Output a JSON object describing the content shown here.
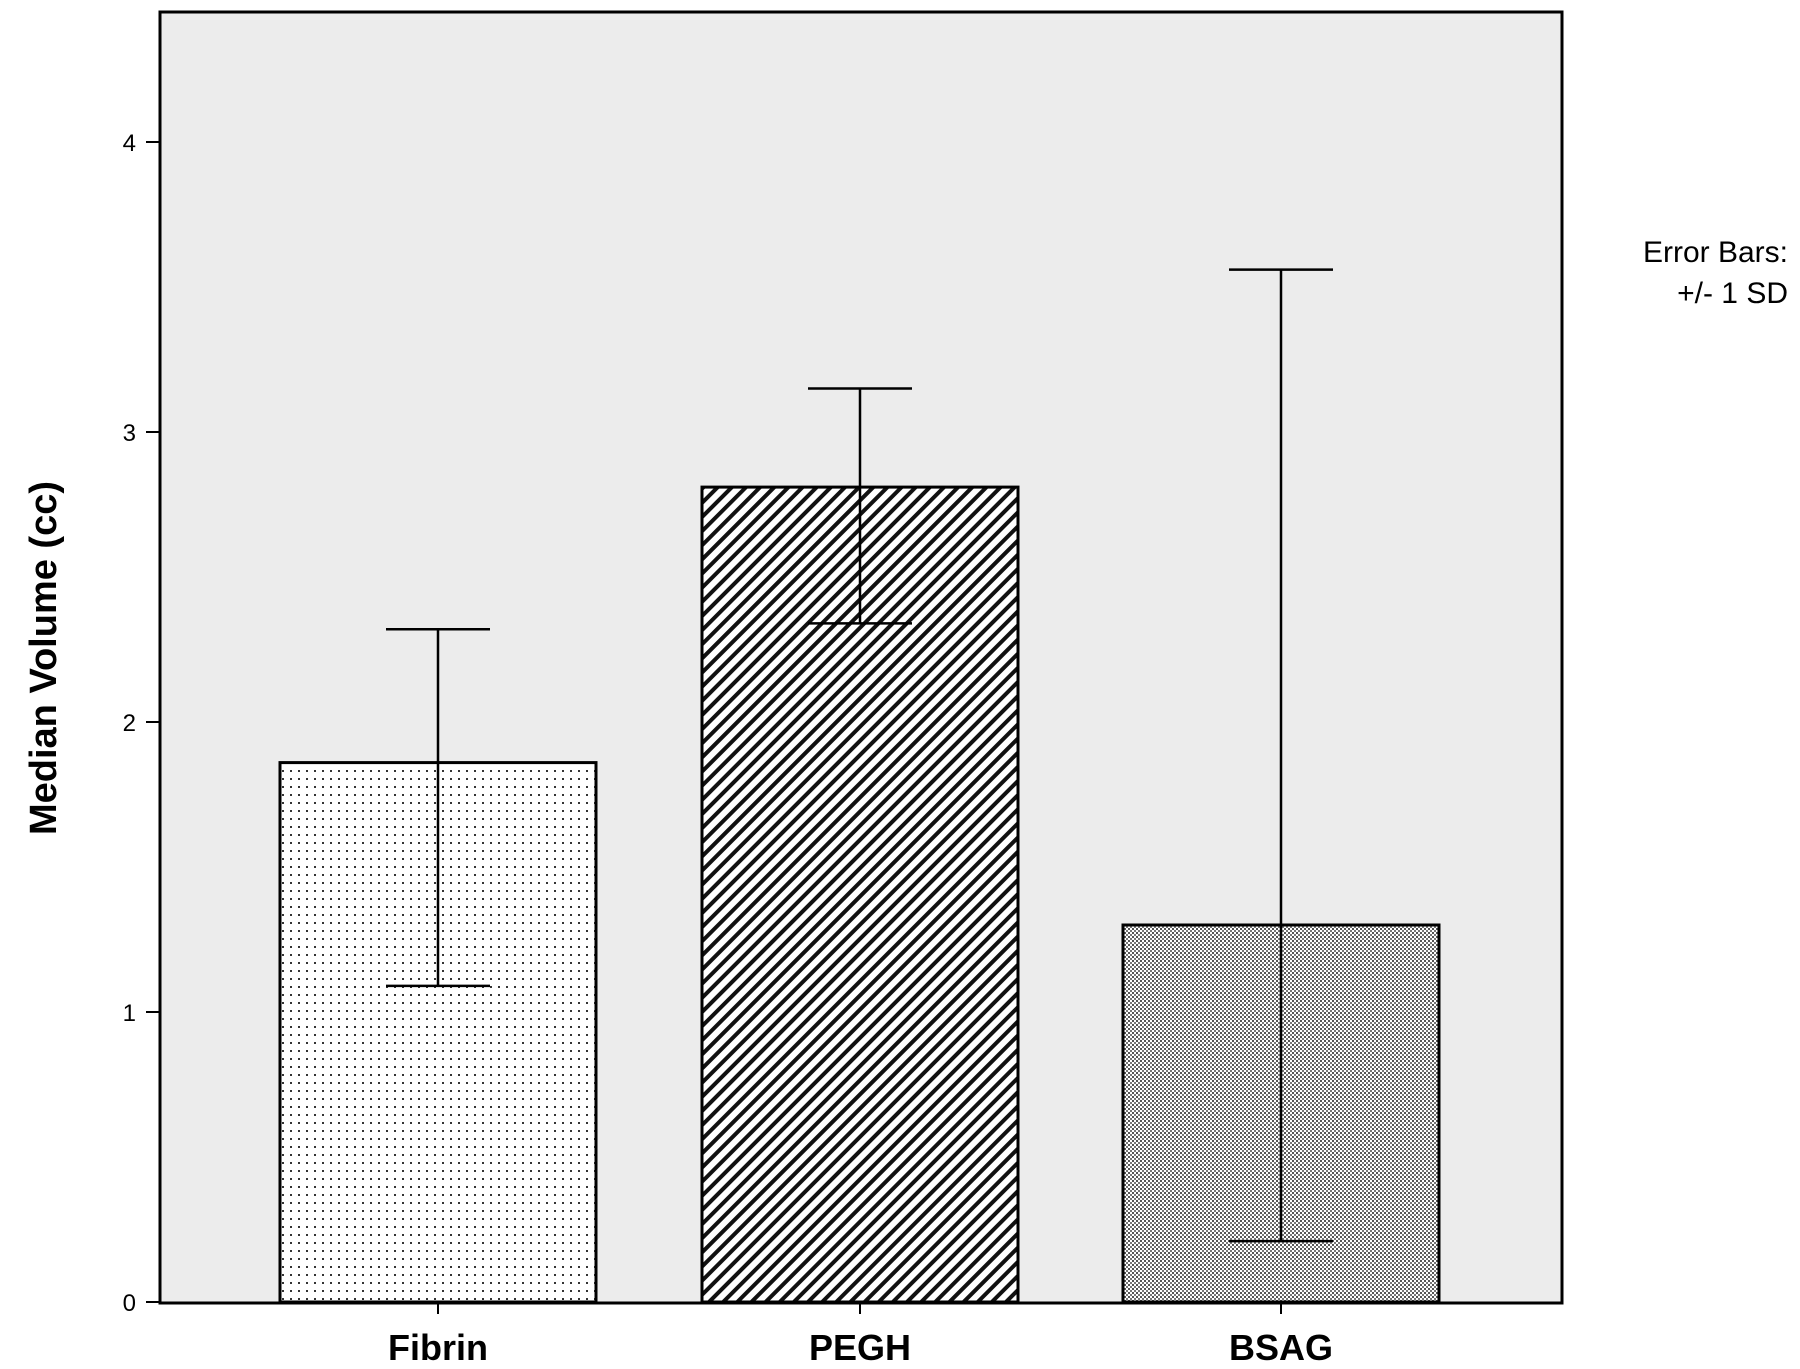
{
  "chart_data": {
    "type": "bar",
    "categories": [
      "Fibrin",
      "PEGH",
      "BSAG"
    ],
    "values": [
      1.86,
      2.81,
      1.3
    ],
    "error_bars": {
      "type": "+/- 1 SD",
      "lower": [
        1.09,
        2.34,
        0.21
      ],
      "upper": [
        2.32,
        3.15,
        3.56
      ]
    },
    "patterns": [
      "fine-dots",
      "diagonal-hatch",
      "dense-dots"
    ],
    "ylabel": "Median Volume (cc)",
    "xlabel": "",
    "ylim": [
      0,
      4.45
    ],
    "yticks": [
      0,
      1,
      2,
      3,
      4
    ],
    "ytick_labels": [
      "0",
      "1",
      "2",
      "3",
      "4"
    ],
    "annotation": {
      "line1": "Error Bars:",
      "line2": "+/- 1 SD"
    },
    "plot_background": "#ececec",
    "bar_fill": "#ffffff",
    "grid": false
  }
}
